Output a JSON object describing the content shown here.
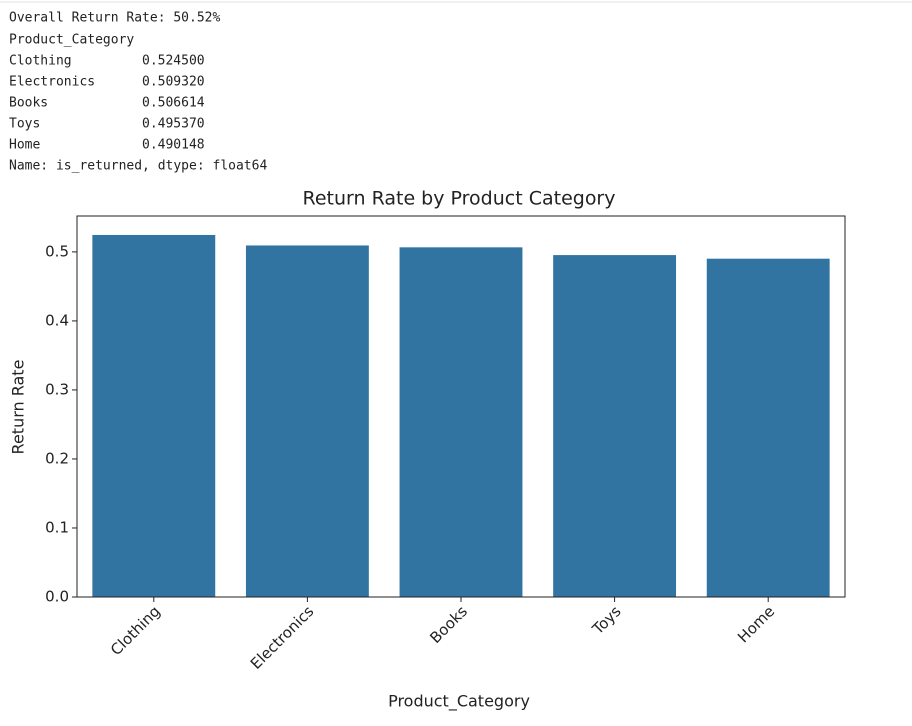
{
  "output": {
    "summary": "Overall Return Rate: 50.52%",
    "header": "Product_Category",
    "rows": [
      [
        "Clothing",
        "0.524500"
      ],
      [
        "Electronics",
        "0.509320"
      ],
      [
        "Books",
        "0.506614"
      ],
      [
        "Toys",
        "0.495370"
      ],
      [
        "Home",
        "0.490148"
      ]
    ],
    "footer": "Name: is_returned, dtype: float64"
  },
  "chart_data": {
    "type": "bar",
    "title": "Return Rate by Product Category",
    "x_label": "Product_Category",
    "y_label": "Return Rate",
    "categories": [
      "Clothing",
      "Electronics",
      "Books",
      "Toys",
      "Home"
    ],
    "values": [
      0.5245,
      0.50932,
      0.506614,
      0.49537,
      0.490148
    ],
    "color": "#3274a1",
    "ylim": [
      0,
      0.552
    ],
    "yticks": [
      {
        "value": 0,
        "label": "0.0"
      },
      0.1,
      0.2,
      0.3,
      0.4,
      0.5
    ]
  }
}
